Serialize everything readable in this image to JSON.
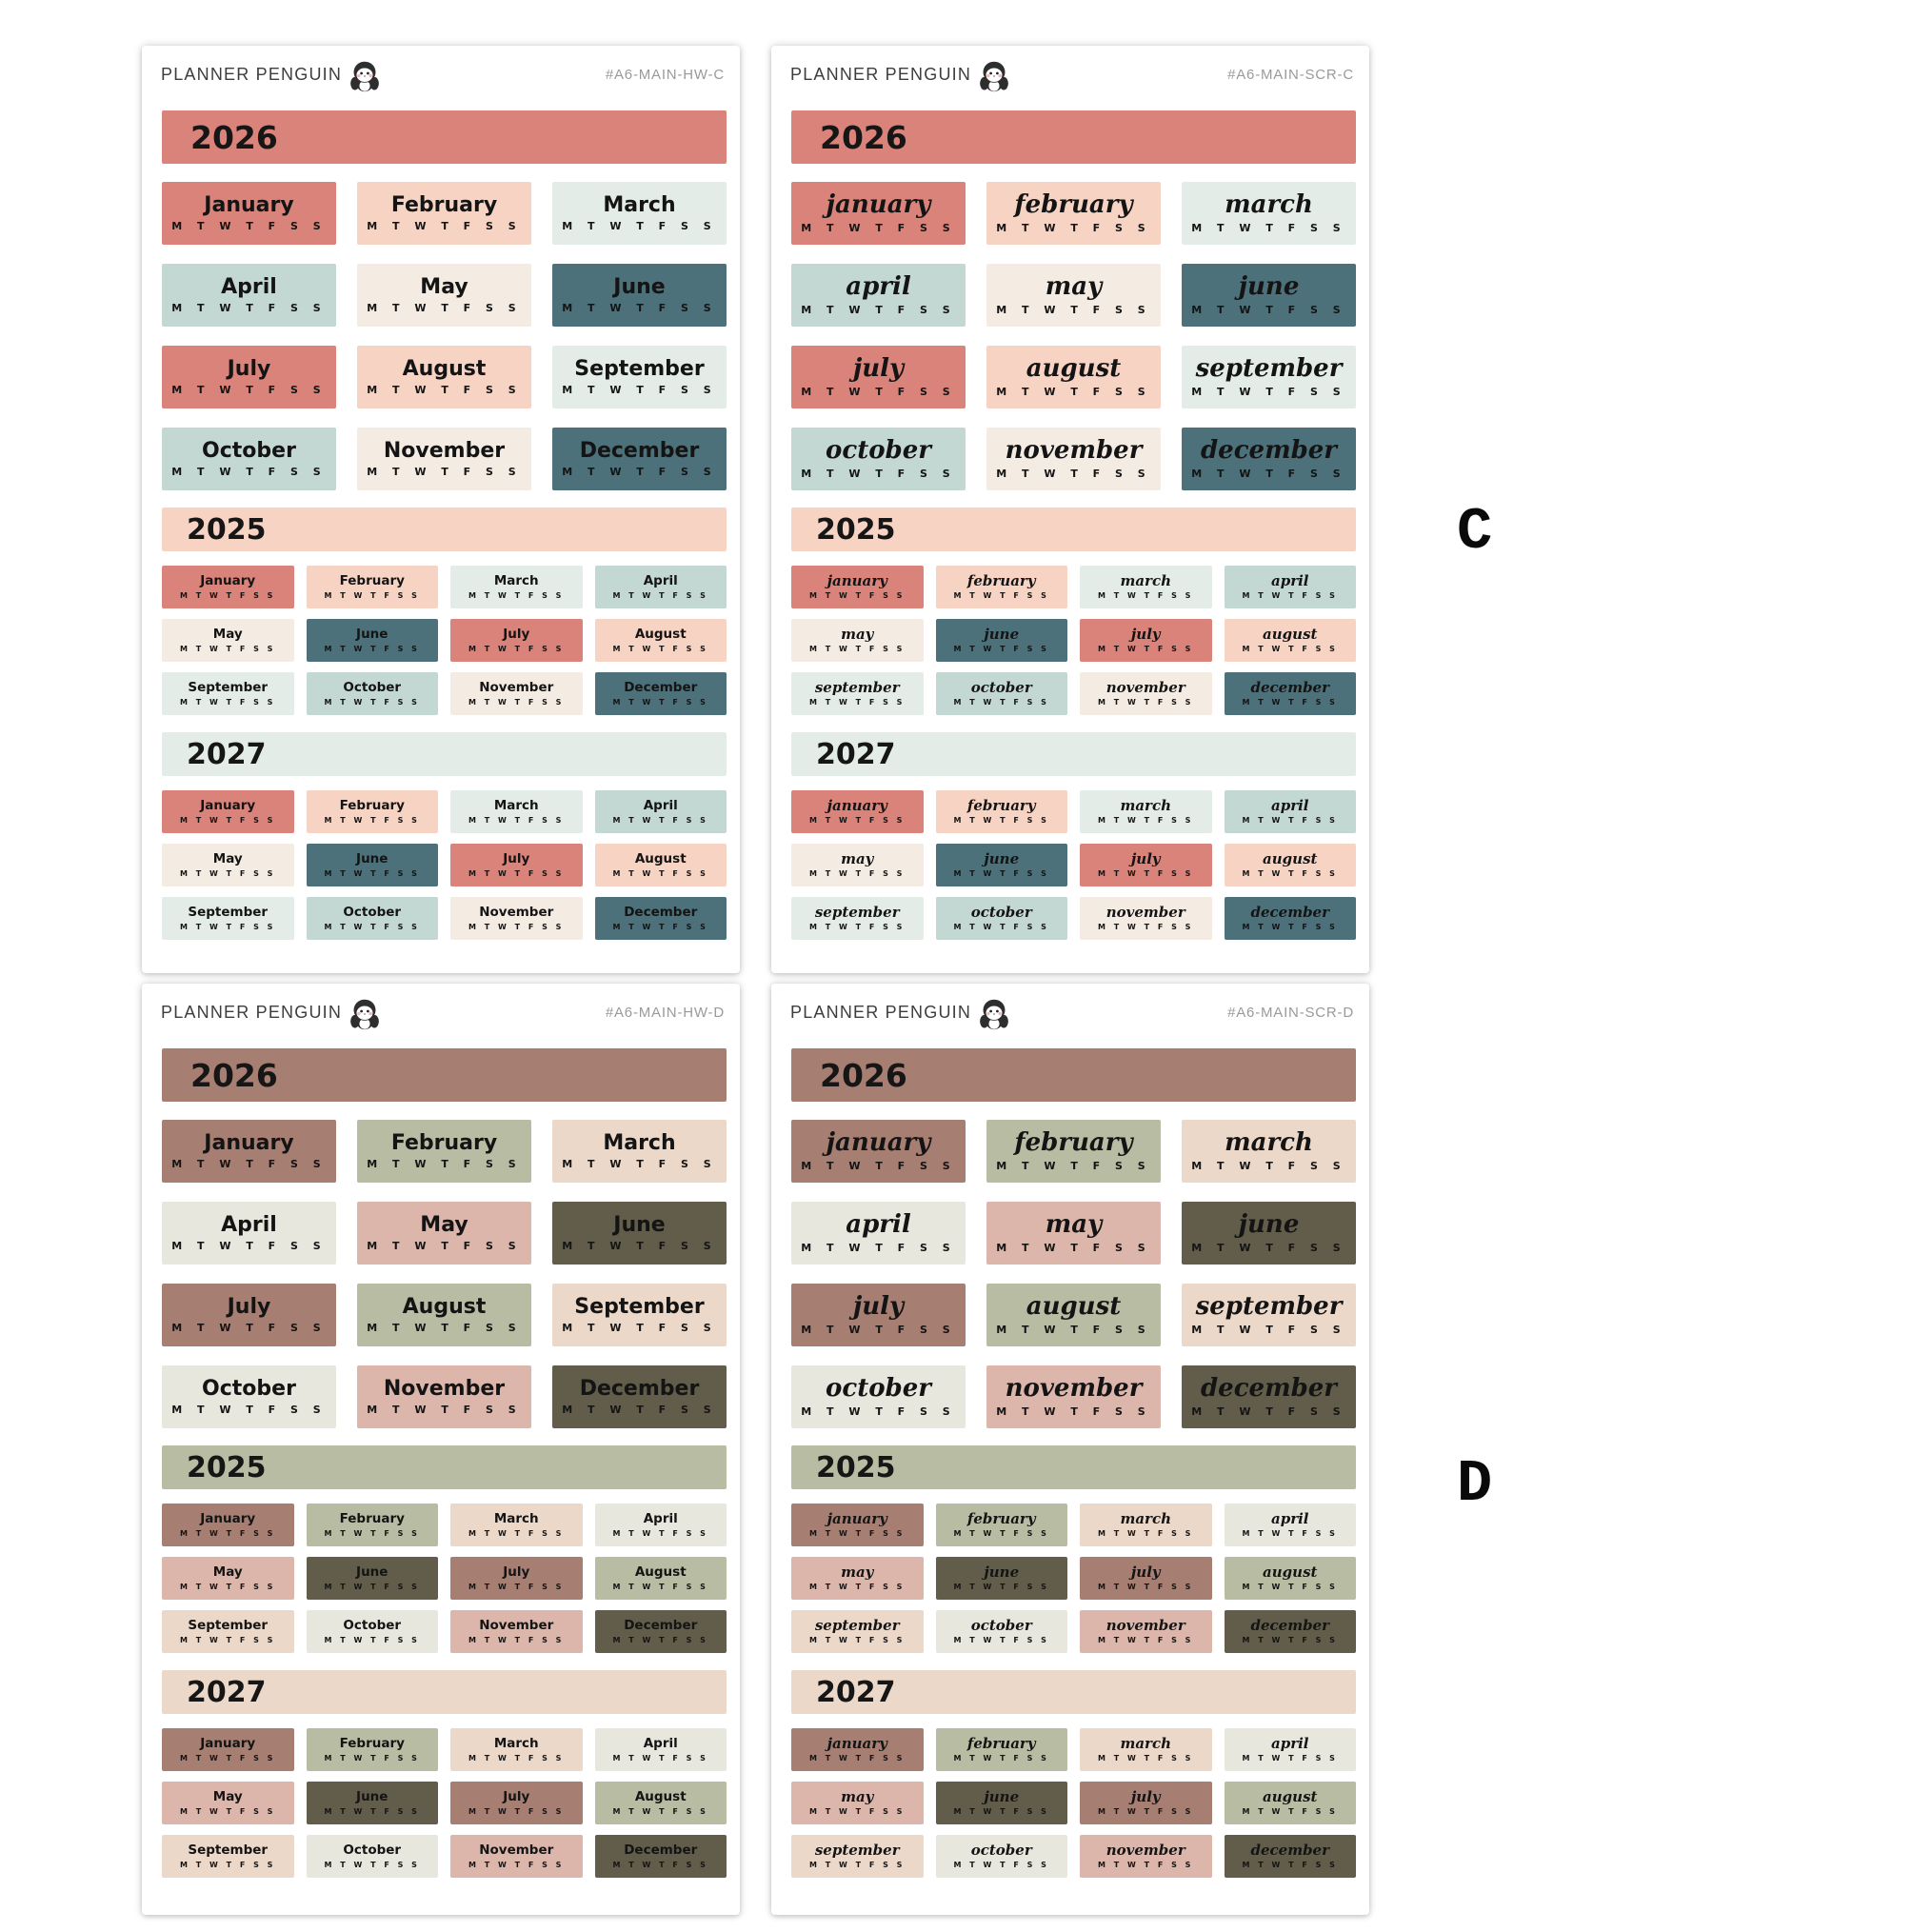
{
  "brand": "PLANNER PENGUIN",
  "side_labels": [
    {
      "text": "C"
    },
    {
      "text": "D"
    }
  ],
  "day_letters": "M T W T F S S",
  "months_print": [
    "January",
    "February",
    "March",
    "April",
    "May",
    "June",
    "July",
    "August",
    "September",
    "October",
    "November",
    "December"
  ],
  "months_script": [
    "january",
    "february",
    "march",
    "april",
    "may",
    "june",
    "july",
    "august",
    "september",
    "october",
    "november",
    "december"
  ],
  "palettes": {
    "C": [
      "#d9837a",
      "#f6d3c3",
      "#e4ece8",
      "#c3d8d2",
      "#f4ebe3",
      "#4c717a"
    ],
    "D": [
      "#a77e72",
      "#b8bca2",
      "#ecd8c9",
      "#e8e7de",
      "#dcb6aa",
      "#615d4a"
    ]
  },
  "sections": [
    {
      "year": "2026",
      "banner_color_index": 0,
      "cols": 3,
      "size": "big"
    },
    {
      "year": "2025",
      "banner_color_index": 1,
      "cols": 4,
      "size": "small"
    },
    {
      "year": "2027",
      "banner_color_index": 2,
      "cols": 4,
      "size": "small"
    }
  ],
  "sheets": [
    {
      "code": "#A6-MAIN-HW-C",
      "palette": "C",
      "style": "print"
    },
    {
      "code": "#A6-MAIN-SCR-C",
      "palette": "C",
      "style": "script"
    },
    {
      "code": "#A6-MAIN-HW-D",
      "palette": "D",
      "style": "print"
    },
    {
      "code": "#A6-MAIN-SCR-D",
      "palette": "D",
      "style": "script"
    }
  ]
}
